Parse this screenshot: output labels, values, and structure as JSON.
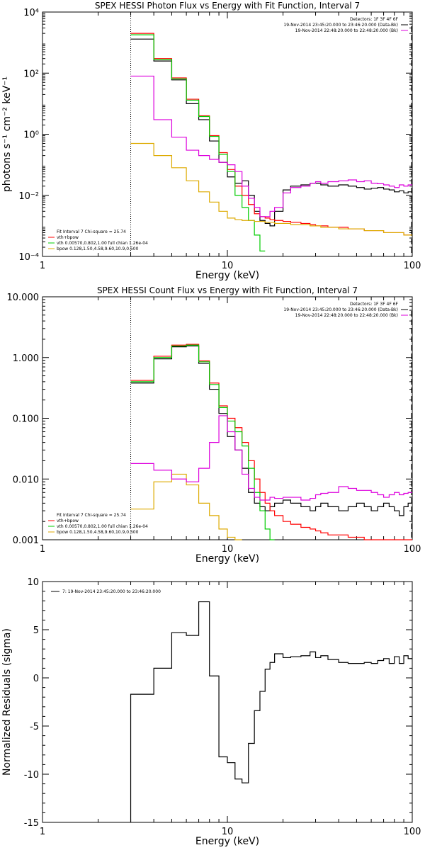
{
  "figure": {
    "background": "#ffffff",
    "colors": {
      "data": "#000000",
      "total": "#ff0000",
      "vth": "#00cc00",
      "bpow": "#ddaa00",
      "bkg": "#dd00dd"
    }
  },
  "chart_data": [
    {
      "type": "line",
      "title": "SPEX HESSI Photon Flux vs Energy with Fit Function, Interval 7",
      "xlabel": "Energy (keV)",
      "ylabel": "photons s⁻¹ cm⁻² keV⁻¹",
      "xscale": "log",
      "yscale": "log",
      "xlim": [
        1,
        100
      ],
      "ylim": [
        0.0001,
        10000
      ],
      "xticks": [
        1,
        10,
        100
      ],
      "xtick_labels": [
        "1",
        "10",
        "100"
      ],
      "yticks": [
        0.0001,
        0.01,
        1,
        100,
        10000
      ],
      "ytick_labels": [
        "10⁻⁴",
        "10⁻²",
        "10⁰",
        "10²",
        "10⁴"
      ],
      "vline_x": 3,
      "right_dash_x": 100,
      "legend_top": {
        "position": "top-right",
        "lines": [
          {
            "text": "Detectors: 1F 3F 4F 6F",
            "color": ""
          },
          {
            "text": "19-Nov-2014 23:45:20.000 to 23:46:20.000 (Data-Bk)",
            "color": "#000000"
          },
          {
            "text": "19-Nov-2014 22:48:20.000 to 22:48:20.000 (Bk)",
            "color": "#dd00dd"
          }
        ]
      },
      "legend_bottom": {
        "position": "bottom-left",
        "lines": [
          {
            "text": "Fit Interval 7   Chi-square = 25.74",
            "color": ""
          },
          {
            "text": "vth+bpow",
            "color": "#ff0000"
          },
          {
            "text": "vth 0.00570,0.802,1.00  full chian 1.26e-04",
            "color": "#00cc00"
          },
          {
            "text": "bpow 0.128,1.50,4.58,9.60,10.9,0.500",
            "color": "#ddaa00"
          }
        ]
      },
      "edges": [
        3.0,
        3.5,
        4.0,
        4.5,
        5.0,
        5.5,
        6.0,
        6.5,
        7.0,
        7.5,
        8.0,
        8.5,
        9.0,
        9.5,
        10.0,
        10.5,
        11.0,
        12.0,
        13.0,
        14.0,
        15.0,
        16.0,
        17.0,
        18.0,
        20.0,
        22.0,
        25.0,
        28.0,
        30.0,
        32.0,
        35.0,
        40.0,
        45.0,
        50.0,
        55.0,
        60.0,
        65.0,
        70.0,
        75.0,
        80.0,
        85.0,
        90.0,
        95.0,
        100.0
      ],
      "series": [
        {
          "color": "#000000",
          "values": [
            1300,
            1300,
            250,
            250,
            60,
            60,
            10,
            10,
            3,
            3,
            0.6,
            0.6,
            0.12,
            0.12,
            0.04,
            0.04,
            0.025,
            0.03,
            0.01,
            0.003,
            0.0015,
            0.0012,
            0.001,
            0.003,
            0.015,
            0.02,
            0.022,
            0.025,
            0.025,
            0.022,
            0.02,
            0.022,
            0.02,
            0.018,
            0.016,
            0.017,
            0.018,
            0.016,
            0.015,
            0.013,
            0.014,
            0.012,
            0.013
          ]
        },
        {
          "color": "#ff0000",
          "values": [
            2000,
            2000,
            300,
            300,
            70,
            70,
            14,
            14,
            4,
            4,
            0.9,
            0.9,
            0.25,
            0.25,
            0.07,
            0.07,
            0.02,
            0.01,
            0.005,
            0.0025,
            0.002,
            0.0018,
            0.0016,
            0.0015,
            0.0014,
            0.0013,
            0.0012,
            0.0011,
            0.001,
            0.001,
            0.0009,
            0.0009,
            0.0008,
            0.0008,
            0.0007,
            0.0007,
            0.0007,
            0.0006,
            0.0006,
            0.0006,
            0.0006,
            0.0005,
            0.0005
          ]
        },
        {
          "color": "#00cc00",
          "values": [
            1800,
            1800,
            280,
            280,
            65,
            65,
            13,
            13,
            3.8,
            3.8,
            0.85,
            0.85,
            0.22,
            0.22,
            0.06,
            0.06,
            0.01,
            0.004,
            0.0015,
            0.0005,
            0.00015
          ]
        },
        {
          "color": "#ddaa00",
          "values": [
            0.5,
            0.5,
            0.2,
            0.2,
            0.08,
            0.08,
            0.03,
            0.03,
            0.013,
            0.013,
            0.006,
            0.006,
            0.003,
            0.003,
            0.0018,
            0.0018,
            0.0016,
            0.0015,
            0.0015,
            0.0014,
            0.0014,
            0.0013,
            0.0013,
            0.0012,
            0.0012,
            0.0011,
            0.0011,
            0.001,
            0.001,
            0.0009,
            0.0009,
            0.0008,
            0.0008,
            0.0008,
            0.0007,
            0.0007,
            0.0007,
            0.0006,
            0.0006,
            0.0006,
            0.0006,
            0.0005,
            0.0005
          ]
        },
        {
          "color": "#dd00dd",
          "values": [
            80,
            80,
            3,
            3,
            0.8,
            0.8,
            0.3,
            0.3,
            0.2,
            0.2,
            0.15,
            0.15,
            0.12,
            0.12,
            0.1,
            0.1,
            0.06,
            0.02,
            0.008,
            0.004,
            0.002,
            0.002,
            0.003,
            0.004,
            0.012,
            0.018,
            0.02,
            0.025,
            0.028,
            0.025,
            0.028,
            0.03,
            0.032,
            0.028,
            0.03,
            0.025,
            0.024,
            0.022,
            0.02,
            0.018,
            0.022,
            0.02,
            0.022
          ]
        }
      ]
    },
    {
      "type": "line",
      "title": "SPEX HESSI Count Flux vs Energy with Fit Function, Interval 7",
      "xlabel": "Energy (keV)",
      "ylabel": "",
      "xscale": "log",
      "yscale": "log",
      "xlim": [
        1,
        100
      ],
      "ylim": [
        0.001,
        10
      ],
      "xticks": [
        1,
        10,
        100
      ],
      "xtick_labels": [
        "1",
        "10",
        "100"
      ],
      "yticks": [
        0.001,
        0.01,
        0.1,
        1,
        10
      ],
      "ytick_labels": [
        "0.001",
        "0.010",
        "0.100",
        "1.000",
        "10.000"
      ],
      "vline_x": 3,
      "right_dash_x": 100,
      "legend_top": {
        "position": "top-right",
        "lines": [
          {
            "text": "Detectors: 1F 3F 4F 6F",
            "color": ""
          },
          {
            "text": "19-Nov-2014 23:45:20.000 to 23:46:20.000 (Data-Bk)",
            "color": "#000000"
          },
          {
            "text": "19-Nov-2014 22:48:20.000 to 22:48:20.000 (Bk)",
            "color": "#dd00dd"
          }
        ]
      },
      "legend_bottom": {
        "position": "bottom-left",
        "lines": [
          {
            "text": "Fit Interval 7   Chi-square = 25.74",
            "color": ""
          },
          {
            "text": "vth+bpow",
            "color": "#ff0000"
          },
          {
            "text": "vth 0.00570,0.802,1.00  full chian 1.26e-04",
            "color": "#00cc00"
          },
          {
            "text": "bpow 0.128,1.50,4.58,9.60,10.9,0.500",
            "color": "#ddaa00"
          }
        ]
      },
      "edges": [
        3.0,
        4.0,
        5.0,
        6.0,
        7.0,
        8.0,
        9.0,
        10.0,
        11.0,
        12.0,
        13.0,
        14.0,
        15.0,
        16.0,
        17.0,
        18.0,
        20.0,
        22.0,
        25.0,
        28.0,
        30.0,
        32.0,
        35.0,
        40.0,
        45.0,
        50.0,
        55.0,
        60.0,
        65.0,
        70.0,
        75.0,
        80.0,
        85.0,
        90.0,
        95.0,
        100.0
      ],
      "series": [
        {
          "color": "#000000",
          "values": [
            0.38,
            0.95,
            1.5,
            1.55,
            0.8,
            0.3,
            0.12,
            0.05,
            0.03,
            0.015,
            0.006,
            0.004,
            0.0035,
            0.003,
            0.0035,
            0.004,
            0.0045,
            0.004,
            0.0035,
            0.003,
            0.0035,
            0.004,
            0.0035,
            0.003,
            0.0035,
            0.004,
            0.0035,
            0.003,
            0.0035,
            0.004,
            0.0035,
            0.003,
            0.0025,
            0.0035,
            0.004
          ]
        },
        {
          "color": "#ff0000",
          "values": [
            0.42,
            1.05,
            1.6,
            1.65,
            0.88,
            0.38,
            0.16,
            0.1,
            0.07,
            0.04,
            0.02,
            0.01,
            0.006,
            0.004,
            0.003,
            0.0025,
            0.002,
            0.0018,
            0.0016,
            0.0015,
            0.0014,
            0.0013,
            0.0012,
            0.0012,
            0.0011,
            0.0011,
            0.001,
            0.001,
            0.001,
            0.001,
            0.001,
            0.001,
            0.001,
            0.001,
            0.001
          ]
        },
        {
          "color": "#00cc00",
          "values": [
            0.4,
            1.0,
            1.55,
            1.6,
            0.85,
            0.36,
            0.15,
            0.09,
            0.06,
            0.035,
            0.015,
            0.006,
            0.003,
            0.0015,
            0.0008
          ]
        },
        {
          "color": "#ddaa00",
          "values": [
            0.0032,
            0.009,
            0.012,
            0.008,
            0.004,
            0.0025,
            0.0015,
            0.0011,
            0.0008
          ]
        },
        {
          "color": "#dd00dd",
          "values": [
            0.018,
            0.014,
            0.01,
            0.009,
            0.015,
            0.04,
            0.11,
            0.06,
            0.03,
            0.012,
            0.007,
            0.005,
            0.0045,
            0.0045,
            0.005,
            0.0048,
            0.005,
            0.005,
            0.0045,
            0.0048,
            0.0055,
            0.0058,
            0.006,
            0.0075,
            0.007,
            0.0065,
            0.0065,
            0.006,
            0.0055,
            0.005,
            0.0055,
            0.006,
            0.0055,
            0.0058,
            0.006
          ]
        }
      ]
    },
    {
      "type": "line",
      "title": "",
      "xlabel": "Energy (keV)",
      "ylabel": "Normalized Residuals (sigma)",
      "xscale": "log",
      "yscale": "linear",
      "xlim": [
        1,
        100
      ],
      "ylim": [
        -15,
        10
      ],
      "xticks": [
        1,
        10,
        100
      ],
      "xtick_labels": [
        "1",
        "10",
        "100"
      ],
      "yticks": [
        -15,
        -10,
        -5,
        0,
        5,
        10
      ],
      "ytick_labels": [
        "-15",
        "-10",
        "-5",
        "0",
        "5",
        "10"
      ],
      "legend_top": {
        "position": "top-left",
        "lines": [
          {
            "text": "7: 19-Nov-2014 23:45:20.000 to 23:46:20.000",
            "color": "#000000"
          }
        ]
      },
      "edges": [
        3.0,
        4.0,
        5.0,
        6.0,
        7.0,
        8.0,
        9.0,
        10.0,
        11.0,
        12.0,
        13.0,
        14.0,
        15.0,
        16.0,
        17.0,
        18.0,
        20.0,
        22.0,
        25.0,
        28.0,
        30.0,
        32.0,
        35.0,
        40.0,
        45.0,
        50.0,
        55.0,
        60.0,
        65.0,
        70.0,
        75.0,
        80.0,
        85.0,
        90.0,
        95.0,
        100.0
      ],
      "series": [
        {
          "color": "#000000",
          "start_from": -15,
          "values": [
            -1.7,
            1.0,
            4.7,
            4.4,
            7.9,
            0.2,
            -8.2,
            -8.8,
            -10.5,
            -10.9,
            -6.8,
            -3.4,
            -1.4,
            0.9,
            1.6,
            2.5,
            2.1,
            2.2,
            2.3,
            2.7,
            2.1,
            2.3,
            1.9,
            1.6,
            1.5,
            1.5,
            1.6,
            1.5,
            1.8,
            2.0,
            1.5,
            2.2,
            1.5,
            2.3,
            2.0
          ]
        }
      ]
    }
  ]
}
